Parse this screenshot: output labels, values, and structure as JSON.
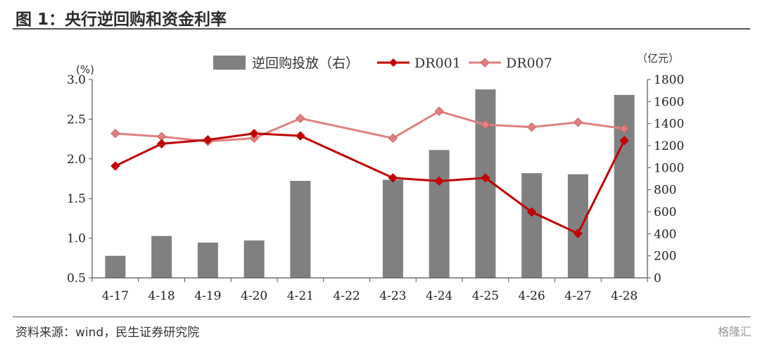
{
  "header": {
    "title": "图 1：央行逆回购和资金利率"
  },
  "footer": {
    "source": "资料来源：wind，民生证券研究院",
    "watermark": "格隆汇"
  },
  "chart_data": {
    "type": "bar+line",
    "title": "图 1：央行逆回购和资金利率",
    "categories": [
      "4-17",
      "4-18",
      "4-19",
      "4-20",
      "4-21",
      "4-22",
      "4-23",
      "4-24",
      "4-25",
      "4-26",
      "4-27",
      "4-28"
    ],
    "bars": {
      "name": "逆回购投放（右）",
      "axis": "right",
      "values": [
        200,
        380,
        320,
        340,
        880,
        0,
        890,
        1160,
        1710,
        950,
        940,
        1660
      ]
    },
    "series": [
      {
        "name": "DR001",
        "axis": "left",
        "color": "#c00000",
        "values": [
          1.91,
          2.19,
          2.24,
          2.32,
          2.29,
          null,
          1.76,
          1.72,
          1.76,
          1.33,
          1.06,
          2.23
        ]
      },
      {
        "name": "DR007",
        "axis": "left",
        "color": "#e08080",
        "values": [
          2.32,
          2.28,
          2.22,
          2.26,
          2.51,
          null,
          2.26,
          2.6,
          2.43,
          2.4,
          2.46,
          2.38
        ]
      }
    ],
    "left_axis": {
      "unit": "(%)",
      "min": 0.5,
      "max": 3.0,
      "ticks": [
        "0.5",
        "1.0",
        "1.5",
        "2.0",
        "2.5",
        "3.0"
      ]
    },
    "right_axis": {
      "unit": "（亿元）",
      "min": 0,
      "max": 1800,
      "ticks": [
        "0",
        "200",
        "400",
        "600",
        "800",
        "1000",
        "1200",
        "1400",
        "1600",
        "1800"
      ]
    },
    "legend": {
      "position": "top"
    },
    "colors": {
      "bar": "#808080",
      "dr001": "#c00000",
      "dr007": "#e08080"
    }
  }
}
